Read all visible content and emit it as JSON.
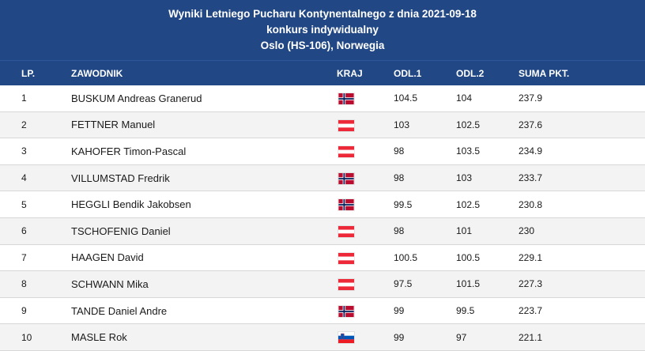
{
  "title": {
    "line1": "Wyniki Letniego Pucharu Kontynentalnego z dnia 2021-09-18",
    "line2": "konkurs indywidualny",
    "line3": "Oslo (HS-106), Norwegia"
  },
  "columns": {
    "lp": "LP.",
    "name": "ZAWODNIK",
    "country": "KRAJ",
    "jump1": "ODL.1",
    "jump2": "ODL.2",
    "total": "SUMA PKT."
  },
  "colors": {
    "header_bg": "#214885",
    "row_alt_bg": "#f3f3f3"
  },
  "rows": [
    {
      "lp": "1",
      "name": "BUSKUM Andreas Granerud",
      "flag": "norway-flag-icon",
      "jump1": "104.5",
      "jump2": "104",
      "total": "237.9"
    },
    {
      "lp": "2",
      "name": "FETTNER Manuel",
      "flag": "austria-flag-icon",
      "jump1": "103",
      "jump2": "102.5",
      "total": "237.6"
    },
    {
      "lp": "3",
      "name": "KAHOFER Timon-Pascal",
      "flag": "austria-flag-icon",
      "jump1": "98",
      "jump2": "103.5",
      "total": "234.9"
    },
    {
      "lp": "4",
      "name": "VILLUMSTAD Fredrik",
      "flag": "norway-flag-icon",
      "jump1": "98",
      "jump2": "103",
      "total": "233.7"
    },
    {
      "lp": "5",
      "name": "HEGGLI Bendik Jakobsen",
      "flag": "norway-flag-icon",
      "jump1": "99.5",
      "jump2": "102.5",
      "total": "230.8"
    },
    {
      "lp": "6",
      "name": "TSCHOFENIG Daniel",
      "flag": "austria-flag-icon",
      "jump1": "98",
      "jump2": "101",
      "total": "230"
    },
    {
      "lp": "7",
      "name": "HAAGEN David",
      "flag": "austria-flag-icon",
      "jump1": "100.5",
      "jump2": "100.5",
      "total": "229.1"
    },
    {
      "lp": "8",
      "name": "SCHWANN Mika",
      "flag": "austria-flag-icon",
      "jump1": "97.5",
      "jump2": "101.5",
      "total": "227.3"
    },
    {
      "lp": "9",
      "name": "TANDE Daniel Andre",
      "flag": "norway-flag-icon",
      "jump1": "99",
      "jump2": "99.5",
      "total": "223.7"
    },
    {
      "lp": "10",
      "name": "MASLE Rok",
      "flag": "slovenia-flag-icon",
      "jump1": "99",
      "jump2": "97",
      "total": "221.1"
    }
  ]
}
